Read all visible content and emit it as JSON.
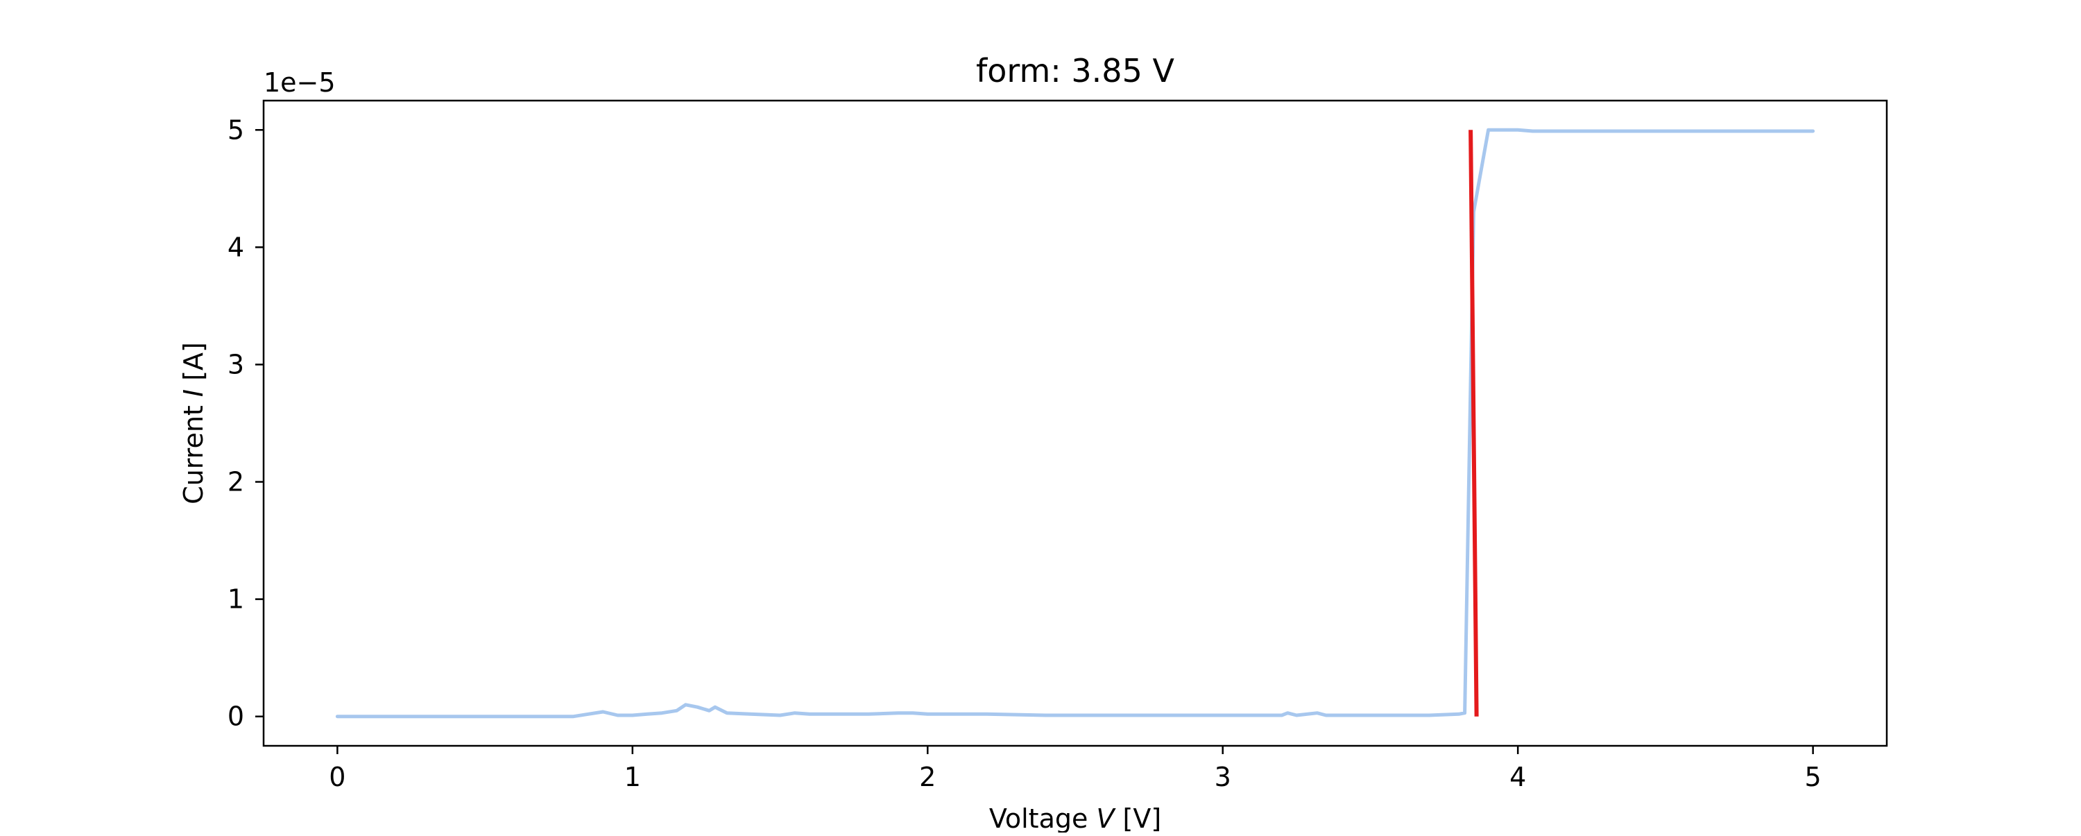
{
  "chart_data": {
    "type": "line",
    "title": "form: 3.85 V",
    "xlabel": {
      "prefix": "Voltage ",
      "italic": "V",
      "suffix": " [V]"
    },
    "ylabel": {
      "prefix": "Current ",
      "italic": "I",
      "suffix": " [A]"
    },
    "y_offset_label": "1e−5",
    "xlim": [
      -0.25,
      5.25
    ],
    "ylim": [
      -0.25,
      5.25
    ],
    "y_scale_factor": 1e-05,
    "x_ticks": [
      0,
      1,
      2,
      3,
      4,
      5
    ],
    "x_tick_labels": [
      "0",
      "1",
      "2",
      "3",
      "4",
      "5"
    ],
    "y_ticks": [
      0,
      1,
      2,
      3,
      4,
      5
    ],
    "y_tick_labels": [
      "0",
      "1",
      "2",
      "3",
      "4",
      "5"
    ],
    "grid": false,
    "colors": {
      "series": "#a7c7ee",
      "marker": "#e41a1c",
      "frame": "#000000"
    },
    "series": [
      {
        "x": [
          0,
          0.2,
          0.4,
          0.6,
          0.8,
          0.85,
          0.9,
          0.95,
          1.0,
          1.05,
          1.1,
          1.15,
          1.18,
          1.22,
          1.26,
          1.28,
          1.32,
          1.4,
          1.5,
          1.55,
          1.6,
          1.7,
          1.8,
          1.9,
          1.95,
          2.0,
          2.2,
          2.4,
          2.6,
          2.8,
          3.0,
          3.2,
          3.22,
          3.25,
          3.32,
          3.35,
          3.45,
          3.6,
          3.7,
          3.8,
          3.82,
          3.85,
          3.9,
          4.0,
          4.05,
          4.2,
          4.5,
          4.8,
          5.0
        ],
        "y": [
          0,
          0,
          0,
          0,
          0,
          0.02,
          0.04,
          0.01,
          0.01,
          0.02,
          0.03,
          0.05,
          0.1,
          0.08,
          0.05,
          0.08,
          0.03,
          0.02,
          0.01,
          0.03,
          0.02,
          0.02,
          0.02,
          0.03,
          0.03,
          0.02,
          0.02,
          0.01,
          0.01,
          0.01,
          0.01,
          0.01,
          0.03,
          0.01,
          0.03,
          0.01,
          0.01,
          0.01,
          0.01,
          0.02,
          0.03,
          4.3,
          5.0,
          5.0,
          4.99,
          4.99,
          4.99,
          4.99,
          4.99
        ]
      }
    ],
    "marker_line": {
      "x": [
        3.84,
        3.86
      ],
      "y": [
        5.0,
        0.0
      ]
    }
  }
}
